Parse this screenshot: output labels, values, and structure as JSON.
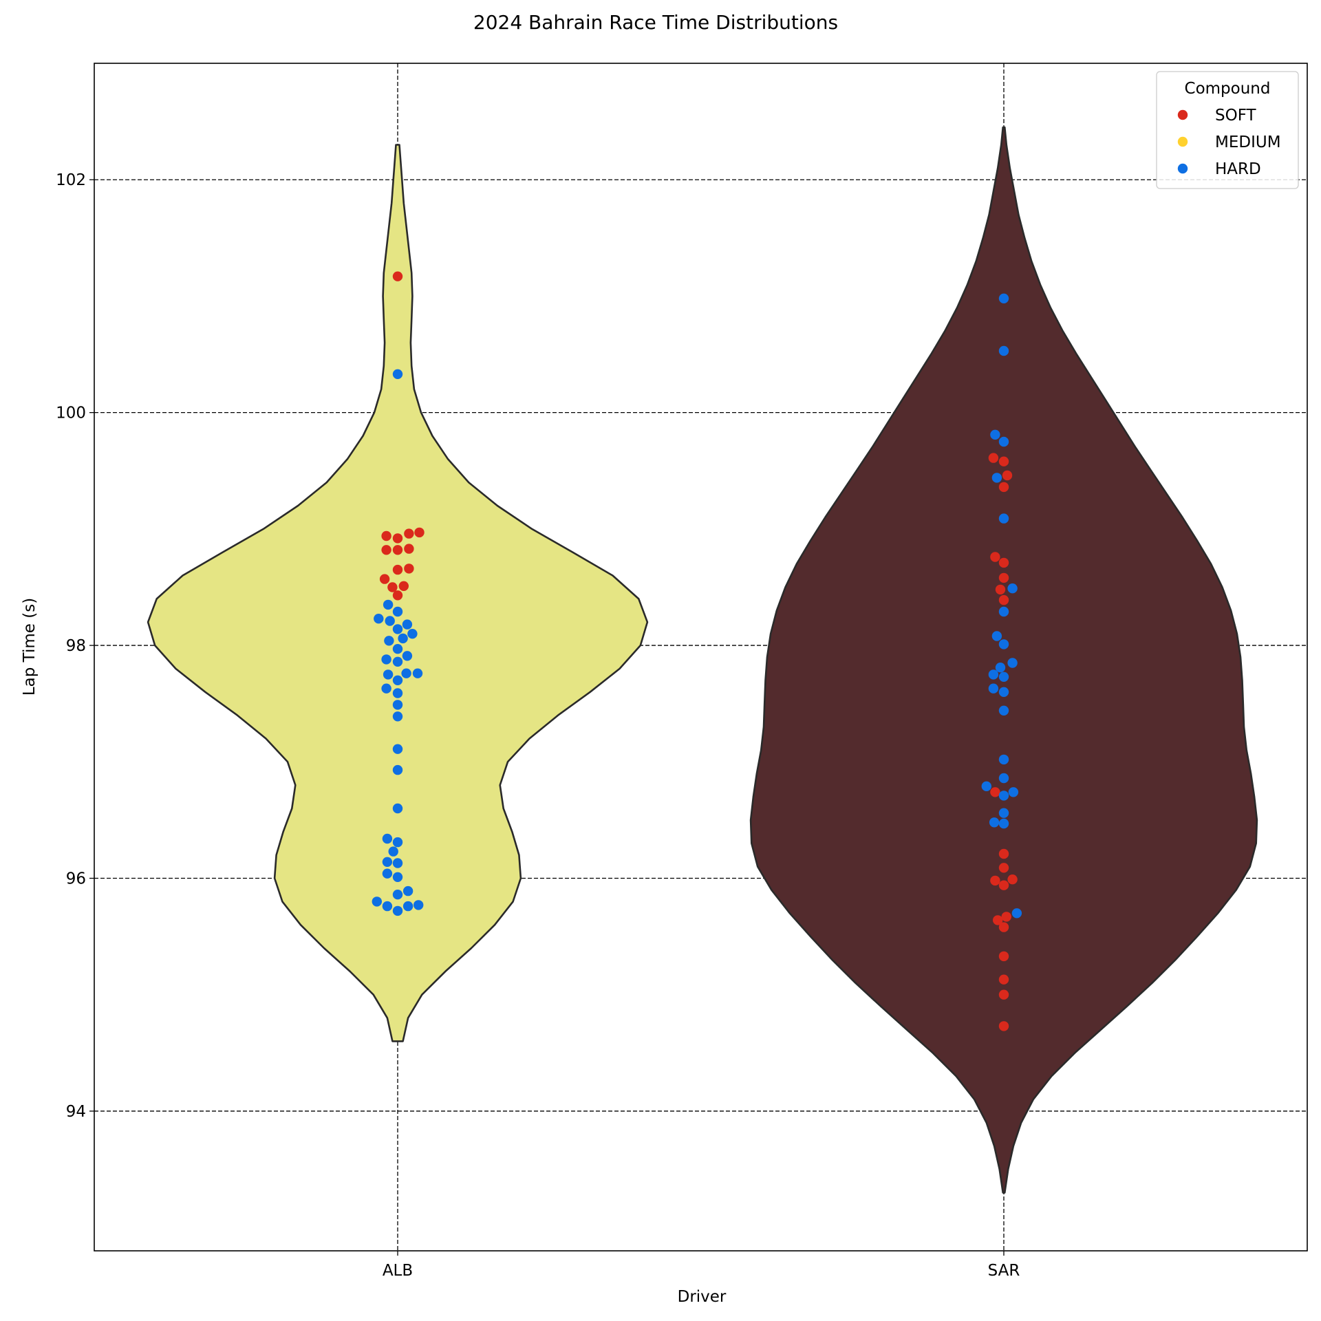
{
  "chart_data": {
    "type": "violin",
    "title": "2024 Bahrain Race Time Distributions",
    "xlabel": "Driver",
    "ylabel": "Lap Time (s)",
    "categories": [
      "ALB",
      "SAR"
    ],
    "ylim": [
      92.8,
      103.0
    ],
    "yticks": [
      94,
      96,
      98,
      100,
      102
    ],
    "grid": true,
    "legend": {
      "title": "Compound",
      "placement": "top-right",
      "entries": [
        {
          "label": "SOFT",
          "color": "#da291c"
        },
        {
          "label": "MEDIUM",
          "color": "#ffd12e"
        },
        {
          "label": "HARD",
          "color": "#0e6fe3"
        }
      ]
    },
    "violins": [
      {
        "category": "ALB",
        "fill": "#e5e584",
        "range": [
          94.6,
          102.3
        ],
        "profile": [
          [
            94.6,
            0.06
          ],
          [
            94.8,
            0.12
          ],
          [
            95.0,
            0.28
          ],
          [
            95.2,
            0.55
          ],
          [
            95.4,
            0.85
          ],
          [
            95.6,
            1.12
          ],
          [
            95.8,
            1.33
          ],
          [
            96.0,
            1.42
          ],
          [
            96.2,
            1.4
          ],
          [
            96.4,
            1.32
          ],
          [
            96.6,
            1.22
          ],
          [
            96.8,
            1.18
          ],
          [
            97.0,
            1.27
          ],
          [
            97.2,
            1.52
          ],
          [
            97.4,
            1.85
          ],
          [
            97.6,
            2.22
          ],
          [
            97.8,
            2.56
          ],
          [
            98.0,
            2.8
          ],
          [
            98.2,
            2.88
          ],
          [
            98.4,
            2.78
          ],
          [
            98.6,
            2.48
          ],
          [
            98.8,
            2.02
          ],
          [
            99.0,
            1.55
          ],
          [
            99.2,
            1.15
          ],
          [
            99.4,
            0.82
          ],
          [
            99.6,
            0.58
          ],
          [
            99.8,
            0.4
          ],
          [
            100.0,
            0.27
          ],
          [
            100.2,
            0.19
          ],
          [
            100.4,
            0.16
          ],
          [
            100.6,
            0.15
          ],
          [
            100.8,
            0.16
          ],
          [
            101.0,
            0.17
          ],
          [
            101.2,
            0.16
          ],
          [
            101.4,
            0.13
          ],
          [
            101.6,
            0.1
          ],
          [
            101.8,
            0.07
          ],
          [
            102.0,
            0.05
          ],
          [
            102.3,
            0.02
          ]
        ]
      },
      {
        "category": "SAR",
        "fill": "#532b2d",
        "range": [
          93.3,
          102.45
        ],
        "profile": [
          [
            93.3,
            0.01
          ],
          [
            93.5,
            0.05
          ],
          [
            93.7,
            0.11
          ],
          [
            93.9,
            0.2
          ],
          [
            94.1,
            0.34
          ],
          [
            94.3,
            0.55
          ],
          [
            94.5,
            0.82
          ],
          [
            94.7,
            1.12
          ],
          [
            94.9,
            1.42
          ],
          [
            95.1,
            1.71
          ],
          [
            95.3,
            1.98
          ],
          [
            95.5,
            2.23
          ],
          [
            95.7,
            2.47
          ],
          [
            95.9,
            2.68
          ],
          [
            96.1,
            2.84
          ],
          [
            96.3,
            2.91
          ],
          [
            96.5,
            2.92
          ],
          [
            96.7,
            2.89
          ],
          [
            96.9,
            2.85
          ],
          [
            97.1,
            2.8
          ],
          [
            97.3,
            2.77
          ],
          [
            97.5,
            2.76
          ],
          [
            97.7,
            2.75
          ],
          [
            97.9,
            2.73
          ],
          [
            98.1,
            2.69
          ],
          [
            98.3,
            2.62
          ],
          [
            98.5,
            2.52
          ],
          [
            98.7,
            2.39
          ],
          [
            98.9,
            2.23
          ],
          [
            99.1,
            2.06
          ],
          [
            99.3,
            1.88
          ],
          [
            99.5,
            1.7
          ],
          [
            99.7,
            1.52
          ],
          [
            99.9,
            1.35
          ],
          [
            100.1,
            1.18
          ],
          [
            100.3,
            1.01
          ],
          [
            100.5,
            0.84
          ],
          [
            100.7,
            0.68
          ],
          [
            100.9,
            0.54
          ],
          [
            101.1,
            0.42
          ],
          [
            101.3,
            0.32
          ],
          [
            101.5,
            0.24
          ],
          [
            101.7,
            0.17
          ],
          [
            101.9,
            0.12
          ],
          [
            102.1,
            0.07
          ],
          [
            102.3,
            0.03
          ],
          [
            102.45,
            0.01
          ]
        ]
      }
    ],
    "points": [
      {
        "driver": "ALB",
        "compound": "SOFT",
        "lap_time": 101.17,
        "offset": 0.0
      },
      {
        "driver": "ALB",
        "compound": "HARD",
        "lap_time": 100.33,
        "offset": 0.0
      },
      {
        "driver": "ALB",
        "compound": "SOFT",
        "lap_time": 98.97,
        "offset": 0.25
      },
      {
        "driver": "ALB",
        "compound": "SOFT",
        "lap_time": 98.96,
        "offset": 0.13
      },
      {
        "driver": "ALB",
        "compound": "SOFT",
        "lap_time": 98.94,
        "offset": -0.13
      },
      {
        "driver": "ALB",
        "compound": "SOFT",
        "lap_time": 98.92,
        "offset": 0.0
      },
      {
        "driver": "ALB",
        "compound": "SOFT",
        "lap_time": 98.83,
        "offset": 0.13
      },
      {
        "driver": "ALB",
        "compound": "SOFT",
        "lap_time": 98.82,
        "offset": -0.13
      },
      {
        "driver": "ALB",
        "compound": "SOFT",
        "lap_time": 98.82,
        "offset": 0.0
      },
      {
        "driver": "ALB",
        "compound": "SOFT",
        "lap_time": 98.66,
        "offset": 0.13
      },
      {
        "driver": "ALB",
        "compound": "SOFT",
        "lap_time": 98.65,
        "offset": 0.0
      },
      {
        "driver": "ALB",
        "compound": "SOFT",
        "lap_time": 98.57,
        "offset": -0.15
      },
      {
        "driver": "ALB",
        "compound": "SOFT",
        "lap_time": 98.51,
        "offset": 0.07
      },
      {
        "driver": "ALB",
        "compound": "SOFT",
        "lap_time": 98.5,
        "offset": -0.06
      },
      {
        "driver": "ALB",
        "compound": "SOFT",
        "lap_time": 98.43,
        "offset": 0.0
      },
      {
        "driver": "ALB",
        "compound": "HARD",
        "lap_time": 98.35,
        "offset": -0.11
      },
      {
        "driver": "ALB",
        "compound": "HARD",
        "lap_time": 98.29,
        "offset": 0.0
      },
      {
        "driver": "ALB",
        "compound": "HARD",
        "lap_time": 98.23,
        "offset": -0.22
      },
      {
        "driver": "ALB",
        "compound": "HARD",
        "lap_time": 98.21,
        "offset": -0.09
      },
      {
        "driver": "ALB",
        "compound": "HARD",
        "lap_time": 98.18,
        "offset": 0.11
      },
      {
        "driver": "ALB",
        "compound": "HARD",
        "lap_time": 98.14,
        "offset": 0.0
      },
      {
        "driver": "ALB",
        "compound": "HARD",
        "lap_time": 98.1,
        "offset": 0.17
      },
      {
        "driver": "ALB",
        "compound": "HARD",
        "lap_time": 98.06,
        "offset": 0.06
      },
      {
        "driver": "ALB",
        "compound": "HARD",
        "lap_time": 98.04,
        "offset": -0.1
      },
      {
        "driver": "ALB",
        "compound": "HARD",
        "lap_time": 97.97,
        "offset": 0.0
      },
      {
        "driver": "ALB",
        "compound": "HARD",
        "lap_time": 97.91,
        "offset": 0.11
      },
      {
        "driver": "ALB",
        "compound": "HARD",
        "lap_time": 97.88,
        "offset": -0.13
      },
      {
        "driver": "ALB",
        "compound": "HARD",
        "lap_time": 97.86,
        "offset": 0.0
      },
      {
        "driver": "ALB",
        "compound": "HARD",
        "lap_time": 97.76,
        "offset": 0.23
      },
      {
        "driver": "ALB",
        "compound": "HARD",
        "lap_time": 97.76,
        "offset": 0.1
      },
      {
        "driver": "ALB",
        "compound": "HARD",
        "lap_time": 97.75,
        "offset": -0.11
      },
      {
        "driver": "ALB",
        "compound": "HARD",
        "lap_time": 97.7,
        "offset": 0.0
      },
      {
        "driver": "ALB",
        "compound": "HARD",
        "lap_time": 97.63,
        "offset": -0.13
      },
      {
        "driver": "ALB",
        "compound": "HARD",
        "lap_time": 97.59,
        "offset": 0.0
      },
      {
        "driver": "ALB",
        "compound": "HARD",
        "lap_time": 97.49,
        "offset": 0.0
      },
      {
        "driver": "ALB",
        "compound": "HARD",
        "lap_time": 97.39,
        "offset": 0.0
      },
      {
        "driver": "ALB",
        "compound": "HARD",
        "lap_time": 97.11,
        "offset": 0.0
      },
      {
        "driver": "ALB",
        "compound": "HARD",
        "lap_time": 96.93,
        "offset": 0.0
      },
      {
        "driver": "ALB",
        "compound": "HARD",
        "lap_time": 96.6,
        "offset": 0.0
      },
      {
        "driver": "ALB",
        "compound": "HARD",
        "lap_time": 96.34,
        "offset": -0.12
      },
      {
        "driver": "ALB",
        "compound": "HARD",
        "lap_time": 96.31,
        "offset": 0.0
      },
      {
        "driver": "ALB",
        "compound": "HARD",
        "lap_time": 96.23,
        "offset": -0.05
      },
      {
        "driver": "ALB",
        "compound": "HARD",
        "lap_time": 96.14,
        "offset": -0.12
      },
      {
        "driver": "ALB",
        "compound": "HARD",
        "lap_time": 96.13,
        "offset": 0.0
      },
      {
        "driver": "ALB",
        "compound": "HARD",
        "lap_time": 96.04,
        "offset": -0.12
      },
      {
        "driver": "ALB",
        "compound": "HARD",
        "lap_time": 96.01,
        "offset": 0.0
      },
      {
        "driver": "ALB",
        "compound": "HARD",
        "lap_time": 95.89,
        "offset": 0.12
      },
      {
        "driver": "ALB",
        "compound": "HARD",
        "lap_time": 95.86,
        "offset": 0.0
      },
      {
        "driver": "ALB",
        "compound": "HARD",
        "lap_time": 95.8,
        "offset": -0.24
      },
      {
        "driver": "ALB",
        "compound": "HARD",
        "lap_time": 95.77,
        "offset": 0.24
      },
      {
        "driver": "ALB",
        "compound": "HARD",
        "lap_time": 95.76,
        "offset": -0.12
      },
      {
        "driver": "ALB",
        "compound": "HARD",
        "lap_time": 95.76,
        "offset": 0.12
      },
      {
        "driver": "ALB",
        "compound": "HARD",
        "lap_time": 95.72,
        "offset": 0.0
      },
      {
        "driver": "SAR",
        "compound": "HARD",
        "lap_time": 100.98,
        "offset": 0.0
      },
      {
        "driver": "SAR",
        "compound": "HARD",
        "lap_time": 100.53,
        "offset": 0.0
      },
      {
        "driver": "SAR",
        "compound": "HARD",
        "lap_time": 99.81,
        "offset": -0.1
      },
      {
        "driver": "SAR",
        "compound": "HARD",
        "lap_time": 99.75,
        "offset": 0.0
      },
      {
        "driver": "SAR",
        "compound": "SOFT",
        "lap_time": 99.61,
        "offset": -0.12
      },
      {
        "driver": "SAR",
        "compound": "SOFT",
        "lap_time": 99.58,
        "offset": 0.0
      },
      {
        "driver": "SAR",
        "compound": "SOFT",
        "lap_time": 99.46,
        "offset": 0.04
      },
      {
        "driver": "SAR",
        "compound": "HARD",
        "lap_time": 99.44,
        "offset": -0.08
      },
      {
        "driver": "SAR",
        "compound": "SOFT",
        "lap_time": 99.36,
        "offset": 0.0
      },
      {
        "driver": "SAR",
        "compound": "HARD",
        "lap_time": 99.09,
        "offset": 0.0
      },
      {
        "driver": "SAR",
        "compound": "SOFT",
        "lap_time": 98.76,
        "offset": -0.1
      },
      {
        "driver": "SAR",
        "compound": "SOFT",
        "lap_time": 98.71,
        "offset": 0.0
      },
      {
        "driver": "SAR",
        "compound": "SOFT",
        "lap_time": 98.58,
        "offset": 0.0
      },
      {
        "driver": "SAR",
        "compound": "HARD",
        "lap_time": 98.49,
        "offset": 0.1
      },
      {
        "driver": "SAR",
        "compound": "SOFT",
        "lap_time": 98.48,
        "offset": -0.04
      },
      {
        "driver": "SAR",
        "compound": "SOFT",
        "lap_time": 98.39,
        "offset": 0.0
      },
      {
        "driver": "SAR",
        "compound": "HARD",
        "lap_time": 98.29,
        "offset": 0.0
      },
      {
        "driver": "SAR",
        "compound": "HARD",
        "lap_time": 98.08,
        "offset": -0.08
      },
      {
        "driver": "SAR",
        "compound": "HARD",
        "lap_time": 98.01,
        "offset": 0.0
      },
      {
        "driver": "SAR",
        "compound": "HARD",
        "lap_time": 97.85,
        "offset": 0.1
      },
      {
        "driver": "SAR",
        "compound": "HARD",
        "lap_time": 97.81,
        "offset": -0.04
      },
      {
        "driver": "SAR",
        "compound": "HARD",
        "lap_time": 97.75,
        "offset": -0.12
      },
      {
        "driver": "SAR",
        "compound": "HARD",
        "lap_time": 97.73,
        "offset": 0.0
      },
      {
        "driver": "SAR",
        "compound": "HARD",
        "lap_time": 97.63,
        "offset": -0.12
      },
      {
        "driver": "SAR",
        "compound": "HARD",
        "lap_time": 97.6,
        "offset": 0.0
      },
      {
        "driver": "SAR",
        "compound": "HARD",
        "lap_time": 97.44,
        "offset": 0.0
      },
      {
        "driver": "SAR",
        "compound": "HARD",
        "lap_time": 97.02,
        "offset": 0.0
      },
      {
        "driver": "SAR",
        "compound": "HARD",
        "lap_time": 96.86,
        "offset": 0.0
      },
      {
        "driver": "SAR",
        "compound": "HARD",
        "lap_time": 96.79,
        "offset": -0.2
      },
      {
        "driver": "SAR",
        "compound": "SOFT",
        "lap_time": 96.74,
        "offset": -0.1
      },
      {
        "driver": "SAR",
        "compound": "HARD",
        "lap_time": 96.74,
        "offset": 0.11
      },
      {
        "driver": "SAR",
        "compound": "HARD",
        "lap_time": 96.71,
        "offset": 0.0
      },
      {
        "driver": "SAR",
        "compound": "HARD",
        "lap_time": 96.56,
        "offset": 0.0
      },
      {
        "driver": "SAR",
        "compound": "HARD",
        "lap_time": 96.48,
        "offset": -0.11
      },
      {
        "driver": "SAR",
        "compound": "HARD",
        "lap_time": 96.47,
        "offset": 0.0
      },
      {
        "driver": "SAR",
        "compound": "SOFT",
        "lap_time": 96.21,
        "offset": 0.0
      },
      {
        "driver": "SAR",
        "compound": "SOFT",
        "lap_time": 96.09,
        "offset": 0.0
      },
      {
        "driver": "SAR",
        "compound": "SOFT",
        "lap_time": 95.99,
        "offset": 0.1
      },
      {
        "driver": "SAR",
        "compound": "SOFT",
        "lap_time": 95.98,
        "offset": -0.1
      },
      {
        "driver": "SAR",
        "compound": "SOFT",
        "lap_time": 95.94,
        "offset": 0.0
      },
      {
        "driver": "SAR",
        "compound": "HARD",
        "lap_time": 95.7,
        "offset": 0.15
      },
      {
        "driver": "SAR",
        "compound": "SOFT",
        "lap_time": 95.67,
        "offset": 0.03
      },
      {
        "driver": "SAR",
        "compound": "SOFT",
        "lap_time": 95.64,
        "offset": -0.07
      },
      {
        "driver": "SAR",
        "compound": "SOFT",
        "lap_time": 95.58,
        "offset": 0.0
      },
      {
        "driver": "SAR",
        "compound": "SOFT",
        "lap_time": 95.33,
        "offset": 0.0
      },
      {
        "driver": "SAR",
        "compound": "SOFT",
        "lap_time": 95.13,
        "offset": 0.0
      },
      {
        "driver": "SAR",
        "compound": "SOFT",
        "lap_time": 95.0,
        "offset": 0.0
      },
      {
        "driver": "SAR",
        "compound": "SOFT",
        "lap_time": 94.73,
        "offset": 0.0
      }
    ]
  }
}
